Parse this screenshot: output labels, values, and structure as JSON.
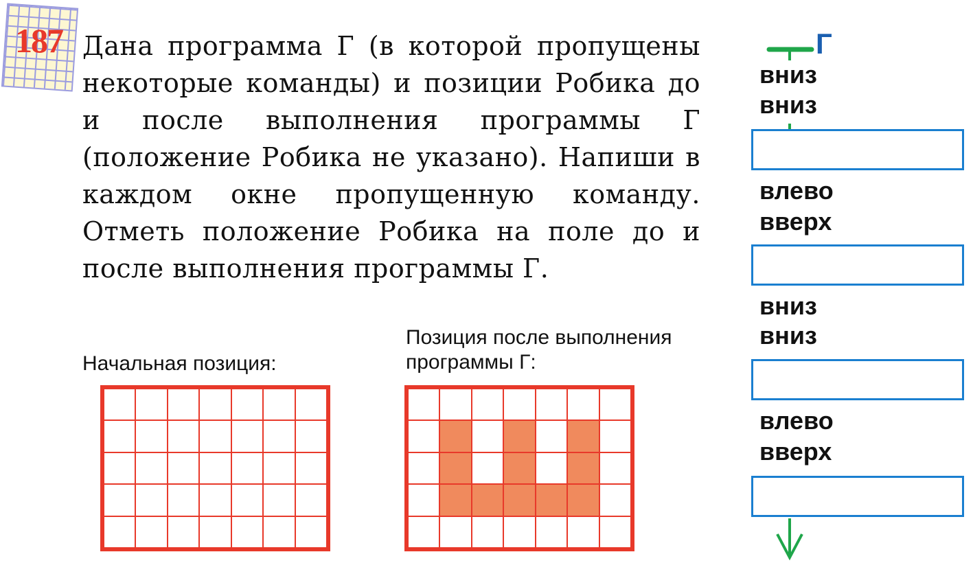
{
  "task": {
    "number": "187",
    "text": "Дана программа Г (в которой пропущены некоторые команды) и позиции Робика до и после выполнения программы Г (положение Робика не указано). Напиши в каждом окне пропущенную команду. Отметь положение Робика на поле до и после выполнения программы Г."
  },
  "initial_label": "Начальная позиция:",
  "final_label": "Позиция после выполнения программы Г:",
  "final_filled_cells": [
    [
      1,
      1
    ],
    [
      1,
      3
    ],
    [
      1,
      5
    ],
    [
      2,
      1
    ],
    [
      2,
      3
    ],
    [
      2,
      5
    ],
    [
      3,
      1
    ],
    [
      3,
      2
    ],
    [
      3,
      3
    ],
    [
      3,
      4
    ],
    [
      3,
      5
    ]
  ],
  "program": {
    "name": "Г",
    "commands": [
      "вниз",
      "вниз",
      "",
      "влево",
      "вверх",
      "",
      "вниз",
      "вниз",
      "",
      "влево",
      "вверх",
      ""
    ]
  },
  "colors": {
    "grid": "#e8392a",
    "fill": "#f08a5d",
    "box": "#1a7fd0",
    "flow": "#1fa64a",
    "name": "#1a5fb0"
  }
}
